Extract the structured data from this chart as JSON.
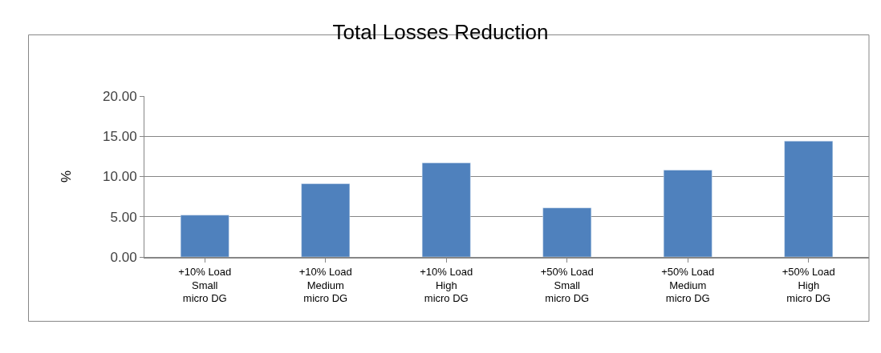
{
  "chart_data": {
    "type": "bar",
    "title": "Total Losses Reduction",
    "ylabel": "%",
    "categories": [
      "+10% Load\nSmall\nmicro DG",
      "+10% Load\nMedium\nmicro DG",
      "+10% Load\nHigh\nmicro DG",
      "+50% Load\nSmall\nmicro DG",
      "+50% Load\nMedium\nmicro DG",
      "+50% Load\nHigh\nmicro DG"
    ],
    "values": [
      5.2,
      9.1,
      11.7,
      6.1,
      10.8,
      14.4
    ],
    "color": "#4f81bd",
    "ylim": [
      0,
      20
    ],
    "yticks": [
      {
        "value": 0,
        "label": "0.00"
      },
      {
        "value": 5,
        "label": "5.00"
      },
      {
        "value": 10,
        "label": "10.00"
      },
      {
        "value": 15,
        "label": "15.00"
      },
      {
        "value": 20,
        "label": "20.00"
      }
    ],
    "grid": "y",
    "legend": false
  }
}
